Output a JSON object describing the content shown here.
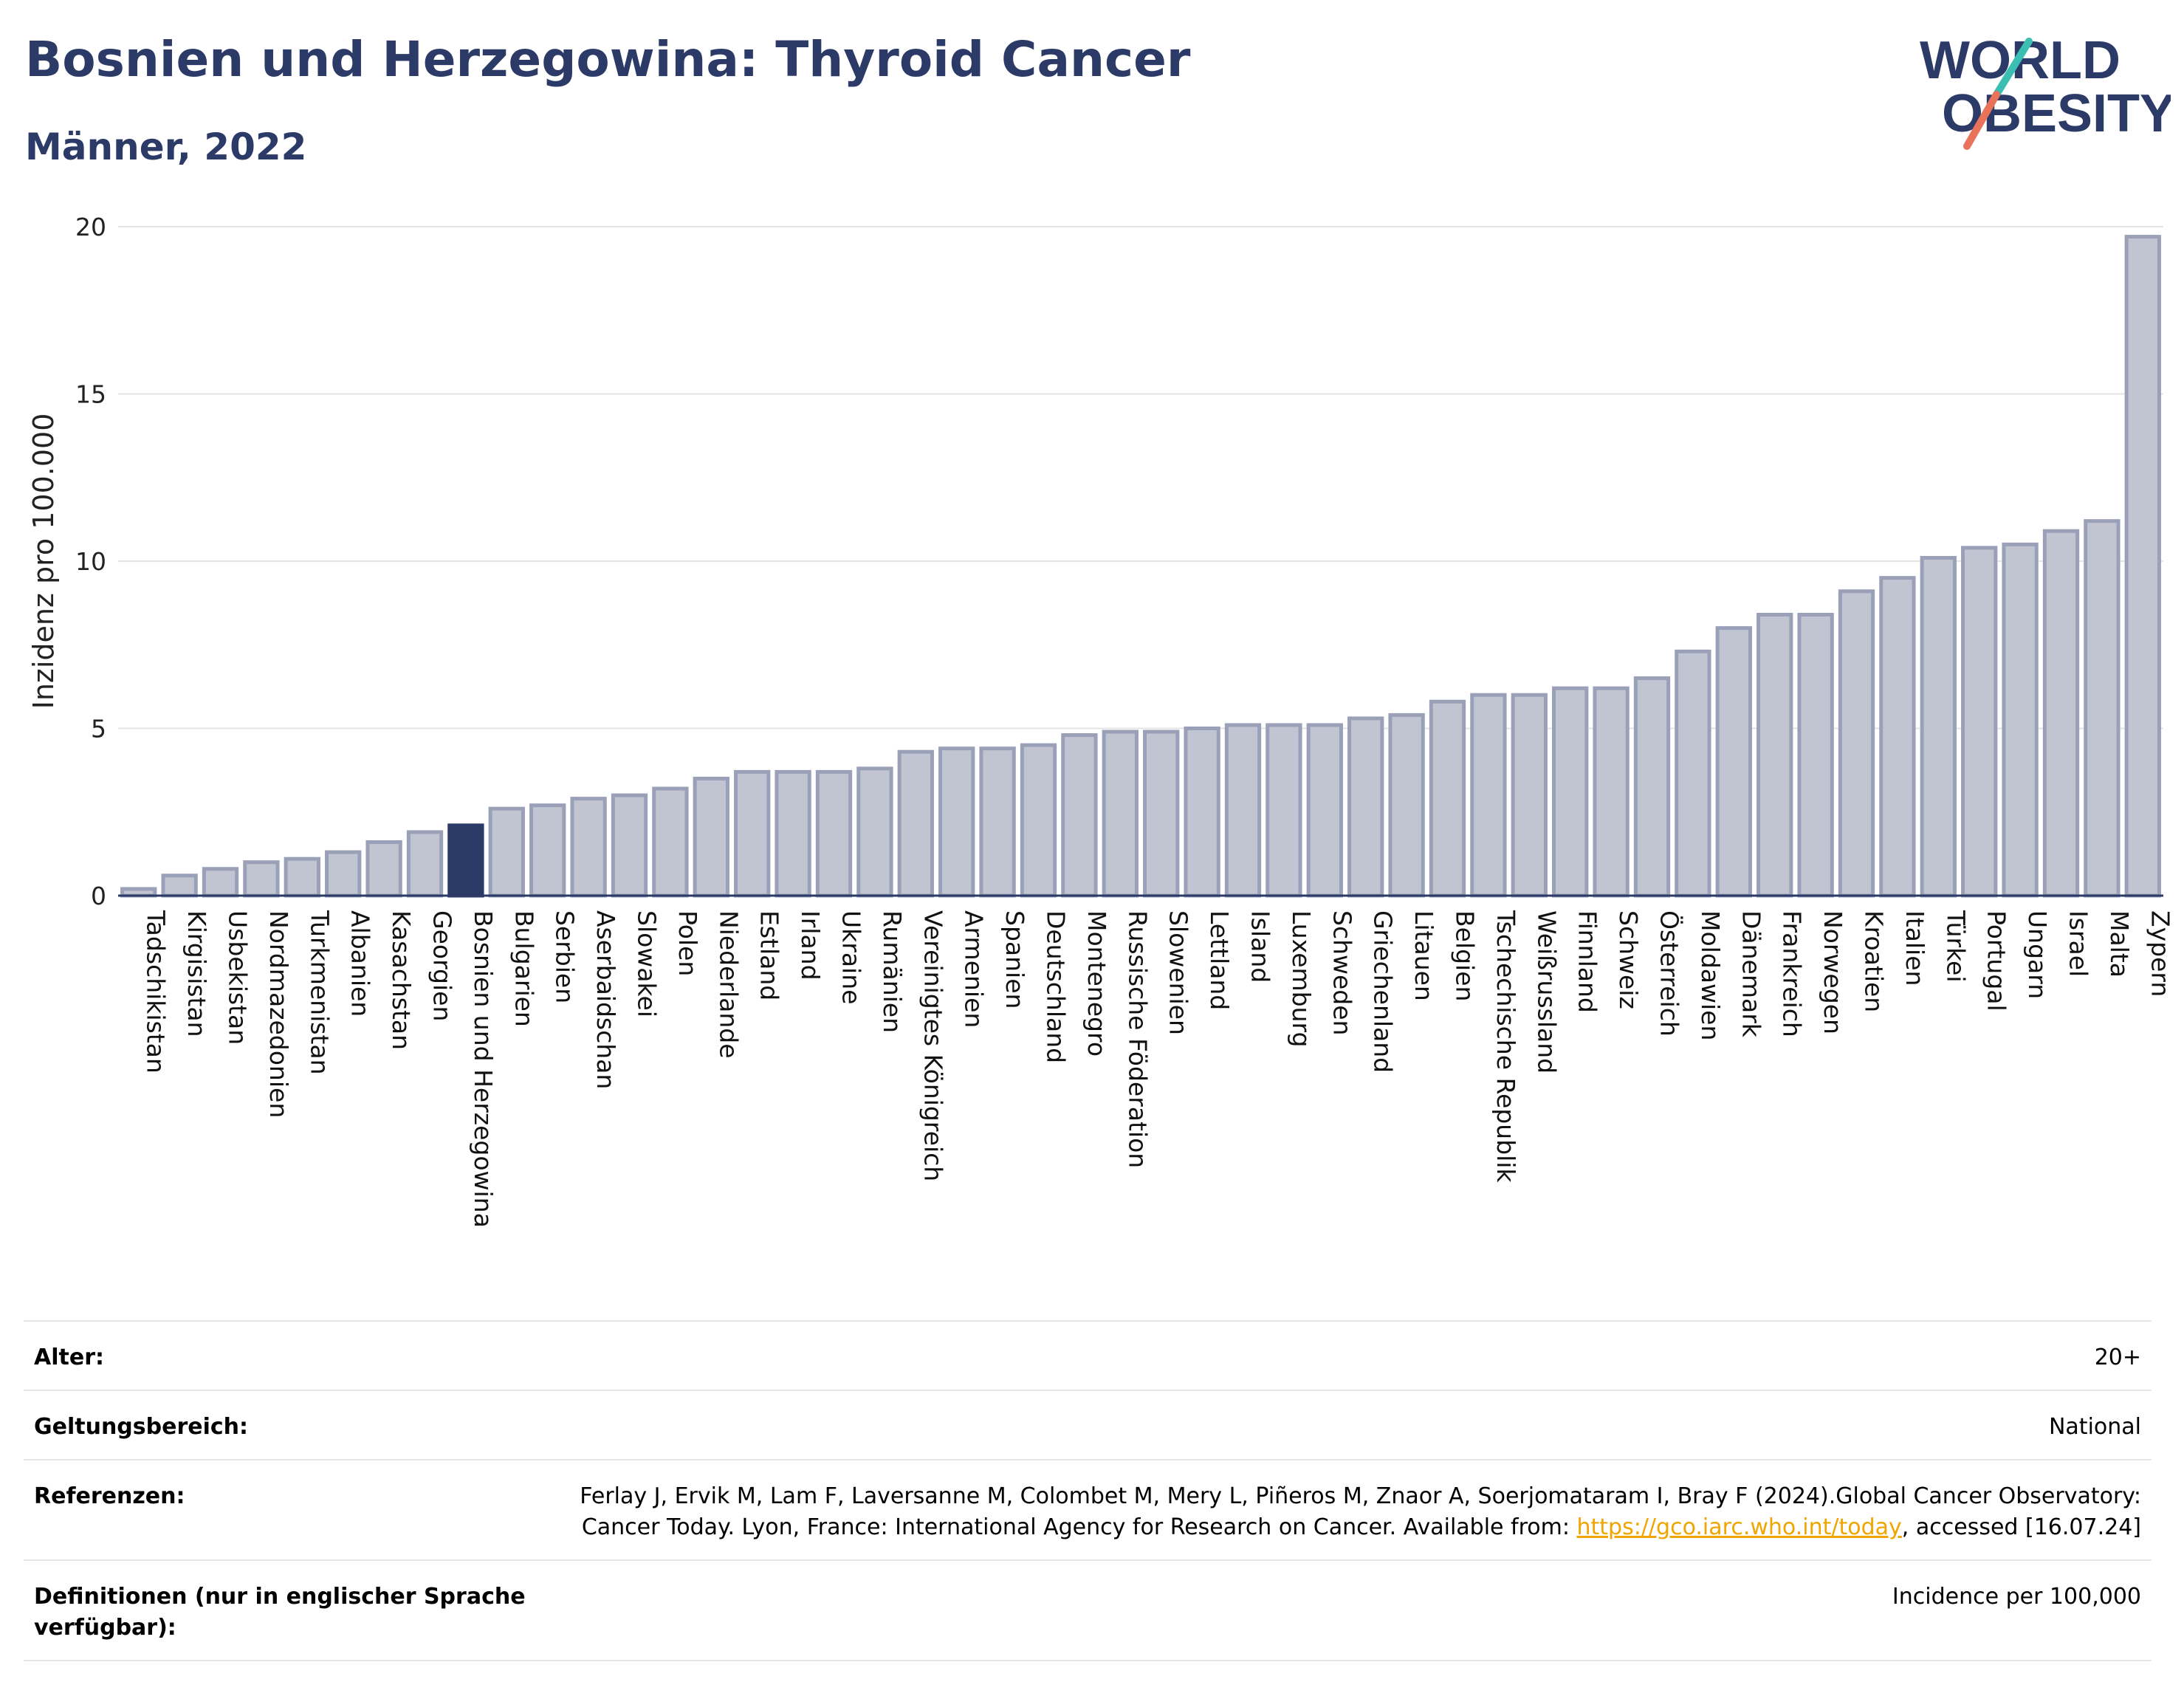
{
  "header": {
    "title": "Bosnien und Herzegowina: Thyroid Cancer",
    "subtitle": "Männer, 2022",
    "logo_line1": "WORLD",
    "logo_line2": "OBESITY"
  },
  "colors": {
    "bar": "#c1c5d2",
    "bar_border": "#9aa0b8",
    "highlight": "#2b3a67",
    "title": "#2b3a67",
    "logo_teal": "#3bbfb2",
    "logo_coral": "#e8735a",
    "link": "#f0a500"
  },
  "chart_data": {
    "type": "bar",
    "ylabel": "Inzidenz pro 100.000",
    "xlabel": "",
    "ylim": [
      0,
      20
    ],
    "yticks": [
      0,
      5,
      10,
      15,
      20
    ],
    "grid": true,
    "highlight": "Bosnien und Herzegowina",
    "categories": [
      "Tadschikistan",
      "Kirgisistan",
      "Usbekistan",
      "Nordmazedonien",
      "Turkmenistan",
      "Albanien",
      "Kasachstan",
      "Georgien",
      "Bosnien und Herzegowina",
      "Bulgarien",
      "Serbien",
      "Aserbaidschan",
      "Slowakei",
      "Polen",
      "Niederlande",
      "Estland",
      "Irland",
      "Ukraine",
      "Rumänien",
      "Vereinigtes Königreich",
      "Armenien",
      "Spanien",
      "Deutschland",
      "Montenegro",
      "Russische Föderation",
      "Slowenien",
      "Lettland",
      "Island",
      "Luxemburg",
      "Schweden",
      "Griechenland",
      "Litauen",
      "Belgien",
      "Tschechische Republik",
      "Weißrussland",
      "Finnland",
      "Schweiz",
      "Österreich",
      "Moldawien",
      "Dänemark",
      "Frankreich",
      "Norwegen",
      "Kroatien",
      "Italien",
      "Türkei",
      "Portugal",
      "Ungarn",
      "Israel",
      "Malta",
      "Zypern"
    ],
    "values": [
      0.2,
      0.6,
      0.8,
      1.0,
      1.1,
      1.3,
      1.6,
      1.9,
      2.1,
      2.6,
      2.7,
      2.9,
      3.0,
      3.2,
      3.5,
      3.7,
      3.7,
      3.7,
      3.8,
      4.3,
      4.4,
      4.4,
      4.5,
      4.8,
      4.9,
      4.9,
      5.0,
      5.1,
      5.1,
      5.1,
      5.3,
      5.4,
      5.8,
      6.0,
      6.0,
      6.2,
      6.2,
      6.5,
      7.3,
      8.0,
      8.4,
      8.4,
      9.1,
      9.5,
      10.1,
      10.4,
      10.5,
      10.9,
      11.2,
      19.7
    ]
  },
  "meta": [
    {
      "key": "Alter:",
      "value": "20+"
    },
    {
      "key": "Geltungsbereich:",
      "value": "National"
    },
    {
      "key": "Referenzen:",
      "value_part1": "Ferlay J, Ervik M, Lam F, Laversanne M, Colombet M, Mery L, Piñeros M, Znaor A, Soerjomataram I, Bray F (2024).Global Cancer Observatory: Cancer Today. Lyon, France: International Agency for Research on Cancer. Available from: ",
      "link": "https://gco.iarc.who.int/today",
      "value_part2": ", accessed [16.07.24]"
    },
    {
      "key": "Definitionen (nur in englischer Sprache verfügbar):",
      "value": "Incidence per 100,000"
    }
  ]
}
